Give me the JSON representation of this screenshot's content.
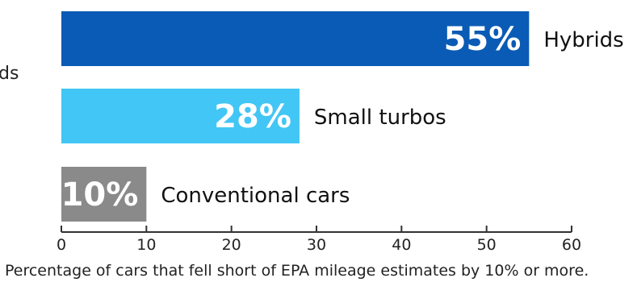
{
  "left_edge_text": "ds",
  "chart_data": {
    "type": "bar",
    "orientation": "horizontal",
    "categories": [
      "Hybrids",
      "Small turbos",
      "Conventional cars"
    ],
    "values": [
      55,
      28,
      10
    ],
    "value_labels": [
      "55%",
      "28%",
      "10%"
    ],
    "colors": [
      "#0a5bb5",
      "#42c6f5",
      "#8a8a8a"
    ],
    "xlabel": "Percentage of cars that fell short of EPA mileage estimates by 10% or more.",
    "xlim": [
      0,
      60
    ],
    "xticks": [
      "0",
      "10",
      "20",
      "30",
      "40",
      "50",
      "60"
    ],
    "grid": false
  }
}
